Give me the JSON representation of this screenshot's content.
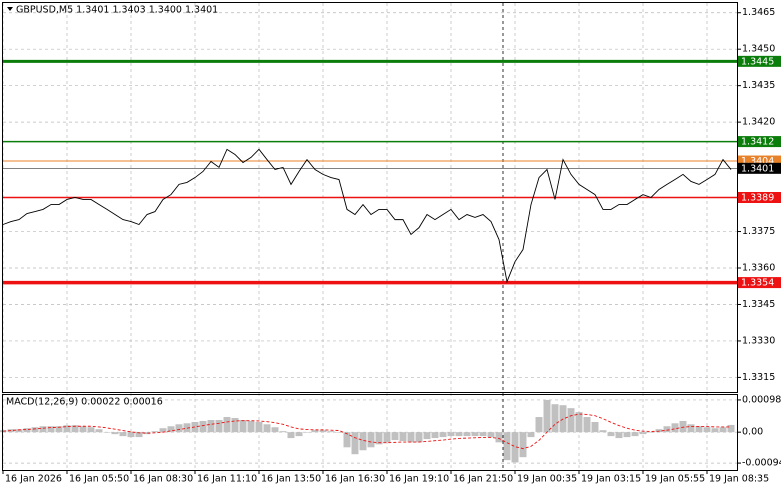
{
  "chart_data": [
    {
      "type": "line",
      "title": "GBPUSD,M5  1.3401 1.3403 1.3400 1.3401",
      "categories": [
        "16 Jan 2026",
        null,
        null,
        null,
        null,
        null,
        null,
        null,
        "16 Jan 05:50",
        null,
        null,
        null,
        null,
        null,
        null,
        null,
        "16 Jan 08:30",
        null,
        null,
        null,
        null,
        null,
        null,
        null,
        "16 Jan 11:10",
        null,
        null,
        null,
        null,
        null,
        null,
        null,
        "16 Jan 13:50",
        null,
        null,
        null,
        null,
        null,
        null,
        null,
        "16 Jan 16:30",
        null,
        null,
        null,
        null,
        null,
        null,
        null,
        "16 Jan 19:10",
        null,
        null,
        null,
        null,
        null,
        null,
        null,
        "16 Jan 21:50",
        null,
        null,
        null,
        null,
        null,
        null,
        null,
        "19 Jan 00:35",
        null,
        null,
        null,
        null,
        null,
        null,
        null,
        "19 Jan 03:15",
        null,
        null,
        null,
        null,
        null,
        null,
        null,
        "19 Jan 05:55",
        null,
        null,
        null,
        null,
        null,
        null,
        null,
        "19 Jan 08:35",
        null,
        null,
        null
      ],
      "series": [
        {
          "name": "GBPUSD",
          "color": "#000000",
          "values": [
            1.33779,
            1.33791,
            1.33799,
            1.33824,
            1.33832,
            1.33841,
            1.33861,
            1.33861,
            1.33882,
            1.3389,
            1.33882,
            1.33882,
            1.33861,
            1.33841,
            1.3382,
            1.33799,
            1.33791,
            1.33779,
            1.3382,
            1.33832,
            1.33882,
            1.33902,
            1.33944,
            1.33952,
            1.33972,
            1.33997,
            1.34038,
            1.34014,
            1.34088,
            1.34067,
            1.34034,
            1.34055,
            1.34088,
            1.34046,
            1.34005,
            1.34014,
            1.33944,
            1.33997,
            1.34046,
            1.34005,
            1.33985,
            1.33972,
            1.33964,
            1.33841,
            1.3382,
            1.33861,
            1.3382,
            1.33841,
            1.33841,
            1.33799,
            1.33799,
            1.33738,
            1.33766,
            1.3382,
            1.33799,
            1.3382,
            1.33841,
            1.33799,
            1.3382,
            1.33808,
            1.3382,
            1.33791,
            1.33717,
            1.33544,
            1.33626,
            1.33676,
            1.33861,
            1.33972,
            1.34005,
            1.33882,
            1.34046,
            1.33985,
            1.33944,
            1.33923,
            1.33902,
            1.33841,
            1.33841,
            1.33861,
            1.33861,
            1.33882,
            1.33902,
            1.3389,
            1.33923,
            1.33944,
            1.33964,
            1.33985,
            1.33956,
            1.33944,
            1.33964,
            1.33985,
            1.34046,
            1.34005
          ]
        }
      ],
      "levels": [
        {
          "value": 1.3445,
          "color": "#0b7d0b",
          "width": 3
        },
        {
          "value": 1.3412,
          "color": "#0b7d0b",
          "width": 1.5
        },
        {
          "value": 1.3404,
          "color": "#e8822a",
          "width": 1
        },
        {
          "value": 1.3401,
          "color": "#000000",
          "width": 0.5
        },
        {
          "value": 1.3389,
          "color": "#ee1111",
          "width": 1.5
        },
        {
          "value": 1.3354,
          "color": "#ee1111",
          "width": 3.5
        }
      ],
      "ylim": [
        1.3309,
        1.3469
      ],
      "yticks": [
        1.3465,
        {
          "value": 1.345,
          "label": "1.3450"
        },
        1.3435,
        {
          "value": 1.342,
          "label": "1.3420"
        },
        1.3375,
        {
          "value": 1.336,
          "label": "1.3360"
        },
        1.3345,
        {
          "value": 1.333,
          "label": "1.3330"
        },
        1.3315
      ],
      "grid": true
    },
    {
      "type": "macd",
      "title": "MACD(12,26,9) 0.00022 0.00016",
      "series": [
        {
          "name": "MACD",
          "color": "#c0c0c0",
          "values": [
            6e-05,
            9e-05,
            9e-05,
            0.00012,
            0.00015,
            0.00018,
            0.00018,
            0.00018,
            0.00021,
            0.00021,
            0.00018,
            0.00015,
            9e-05,
            0,
            -6e-05,
            -0.00012,
            -0.00015,
            -0.00015,
            -6e-05,
            3e-05,
            0.00012,
            0.00018,
            0.00024,
            0.00027,
            0.00031,
            0.00034,
            0.00037,
            0.00037,
            0.00046,
            0.00043,
            0.00037,
            0.00034,
            0.00031,
            0.00024,
            0.00015,
            3e-05,
            -0.00018,
            -0.00012,
            0,
            6e-05,
            6e-05,
            3e-05,
            0,
            -0.00046,
            -0.00067,
            -0.00055,
            -0.00046,
            -0.00037,
            -0.00031,
            -0.00024,
            -0.00027,
            -0.00031,
            -0.00031,
            -0.00021,
            -0.00018,
            -0.00015,
            -0.00012,
            -0.00012,
            -0.00012,
            -0.00012,
            -0.00012,
            -0.00015,
            -0.00031,
            -0.00085,
            -0.00092,
            -0.00076,
            -0.00015,
            0.00046,
            0.00098,
            0.00085,
            0.00082,
            0.00073,
            0.00061,
            0.00046,
            0.00031,
            6e-05,
            -0.00012,
            -0.00018,
            -0.00015,
            -0.00012,
            -6e-05,
            0,
            9e-05,
            0.00018,
            0.00027,
            0.00034,
            0.00024,
            0.00018,
            0.00015,
            0.00012,
            0.00015,
            0.00022
          ]
        },
        {
          "name": "Signal",
          "color": "#ee1111",
          "values": [
            3e-05,
            5e-05,
            7e-05,
            8e-05,
            0.0001,
            0.00012,
            0.00014,
            0.00015,
            0.00017,
            0.00018,
            0.00018,
            0.00018,
            0.00016,
            0.00013,
            9e-05,
            5e-05,
            1e-05,
            -2e-05,
            -3e-05,
            -2e-05,
            0,
            4e-05,
            8e-05,
            0.00012,
            0.00016,
            0.0002,
            0.00024,
            0.00027,
            0.00031,
            0.00034,
            0.00035,
            0.00035,
            0.00034,
            0.00032,
            0.00029,
            0.00024,
            0.00016,
            0.0001,
            8e-05,
            7e-05,
            7e-05,
            6e-05,
            5e-05,
            -5e-05,
            -0.00017,
            -0.00025,
            -0.0003,
            -0.00032,
            -0.00032,
            -0.00031,
            -0.0003,
            -0.0003,
            -0.0003,
            -0.00028,
            -0.00026,
            -0.00024,
            -0.00021,
            -0.00019,
            -0.00018,
            -0.00017,
            -0.00016,
            -0.00016,
            -0.00019,
            -0.00032,
            -0.00044,
            -0.0005,
            -0.00043,
            -0.00025,
            0,
            0.00024,
            0.0004,
            0.0005,
            0.00055,
            0.00054,
            0.0005,
            0.00041,
            0.0003,
            0.0002,
            0.00012,
            6e-05,
            3e-05,
            2e-05,
            3e-05,
            6e-05,
            0.0001,
            0.00015,
            0.00017,
            0.00017,
            0.00017,
            0.00016,
            0.00016,
            0.00016
          ]
        }
      ],
      "ylim": [
        -0.00115,
        0.00113
      ],
      "yticks": [
        0.00098,
        {
          "value": 0,
          "label": "0.00"
        },
        -0.00094
      ],
      "grid": true
    }
  ]
}
